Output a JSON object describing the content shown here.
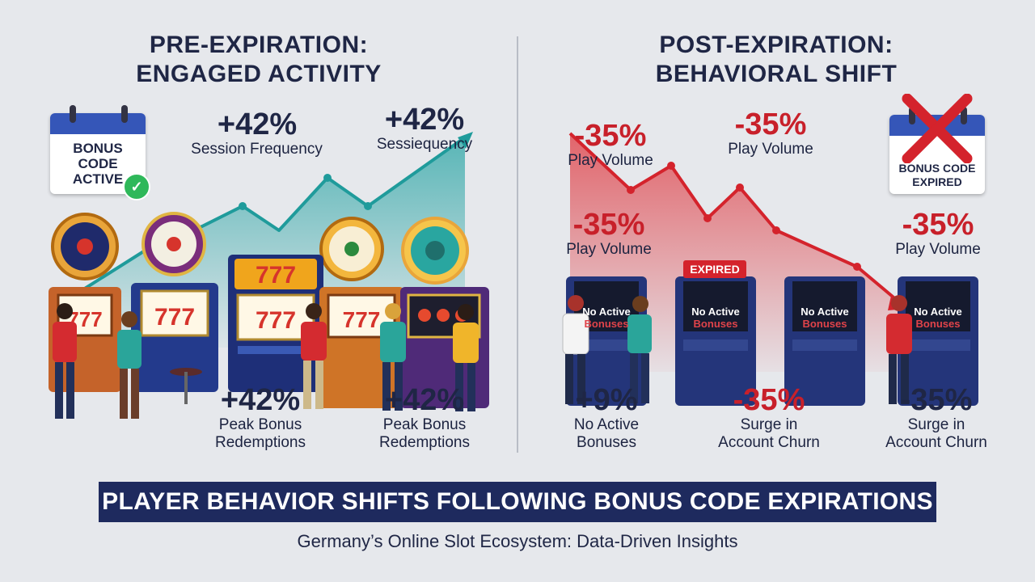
{
  "left": {
    "title_line1": "PRE-EXPIRATION:",
    "title_line2": "ENGAGED ACTIVITY",
    "calendar": {
      "line1": "BONUS",
      "line2": "CODE",
      "line3": "ACTIVE"
    },
    "stats_top": [
      {
        "value": "+42%",
        "label": "Session Frequency"
      },
      {
        "value": "+42%",
        "label": "Sessiequency"
      }
    ],
    "stats_bottom": [
      {
        "value": "+42%",
        "label_line1": "Peak Bonus",
        "label_line2": "Redemptions"
      },
      {
        "value": "+42%",
        "label_line1": "Peak Bonus",
        "label_line2": "Redemptions"
      }
    ],
    "machine_reels": "777"
  },
  "right": {
    "title_line1": "POST-EXPIRATION:",
    "title_line2": "BEHAVIORAL SHIFT",
    "calendar": {
      "line1": "BONUS CODE",
      "line2": "EXPIRED"
    },
    "stats_upper": [
      {
        "value": "-35%",
        "label": "Play Volume"
      },
      {
        "value": "-35%",
        "label": "Play Volume"
      }
    ],
    "stats_middle": [
      {
        "value": "-35%",
        "label": "Play Volume"
      },
      {
        "value": "-35%",
        "label": "Play Volume"
      }
    ],
    "stats_bottom": [
      {
        "value": "+9%",
        "label_line1": "No Active",
        "label_line2": "Bonuses"
      },
      {
        "value": "-35%",
        "label_line1": "Surge in",
        "label_line2": "Account Churn"
      },
      {
        "value": "-35%",
        "label_line1": "Surge in",
        "label_line2": "Account Churn"
      }
    ],
    "expired_sign": "EXPIRED",
    "screens": [
      {
        "line1": "No Active",
        "line2": "Bonuses"
      },
      {
        "line1": "No Active",
        "line2": "Bonuses"
      },
      {
        "line1": "No Active",
        "line2": "Bonuses"
      },
      {
        "line1": "No Active",
        "line2": "Bonuses"
      }
    ]
  },
  "banner": "PLAYER BEHAVIOR SHIFTS FOLLOWING BONUS CODE EXPIRATIONS",
  "subtitle": "Germany’s Online Slot Ecosystem: Data-Driven Insights",
  "colors": {
    "navy": "#1e2a5e",
    "teal": "#2aa5a5",
    "red": "#d4232c",
    "accent_blue": "#3556b8"
  }
}
